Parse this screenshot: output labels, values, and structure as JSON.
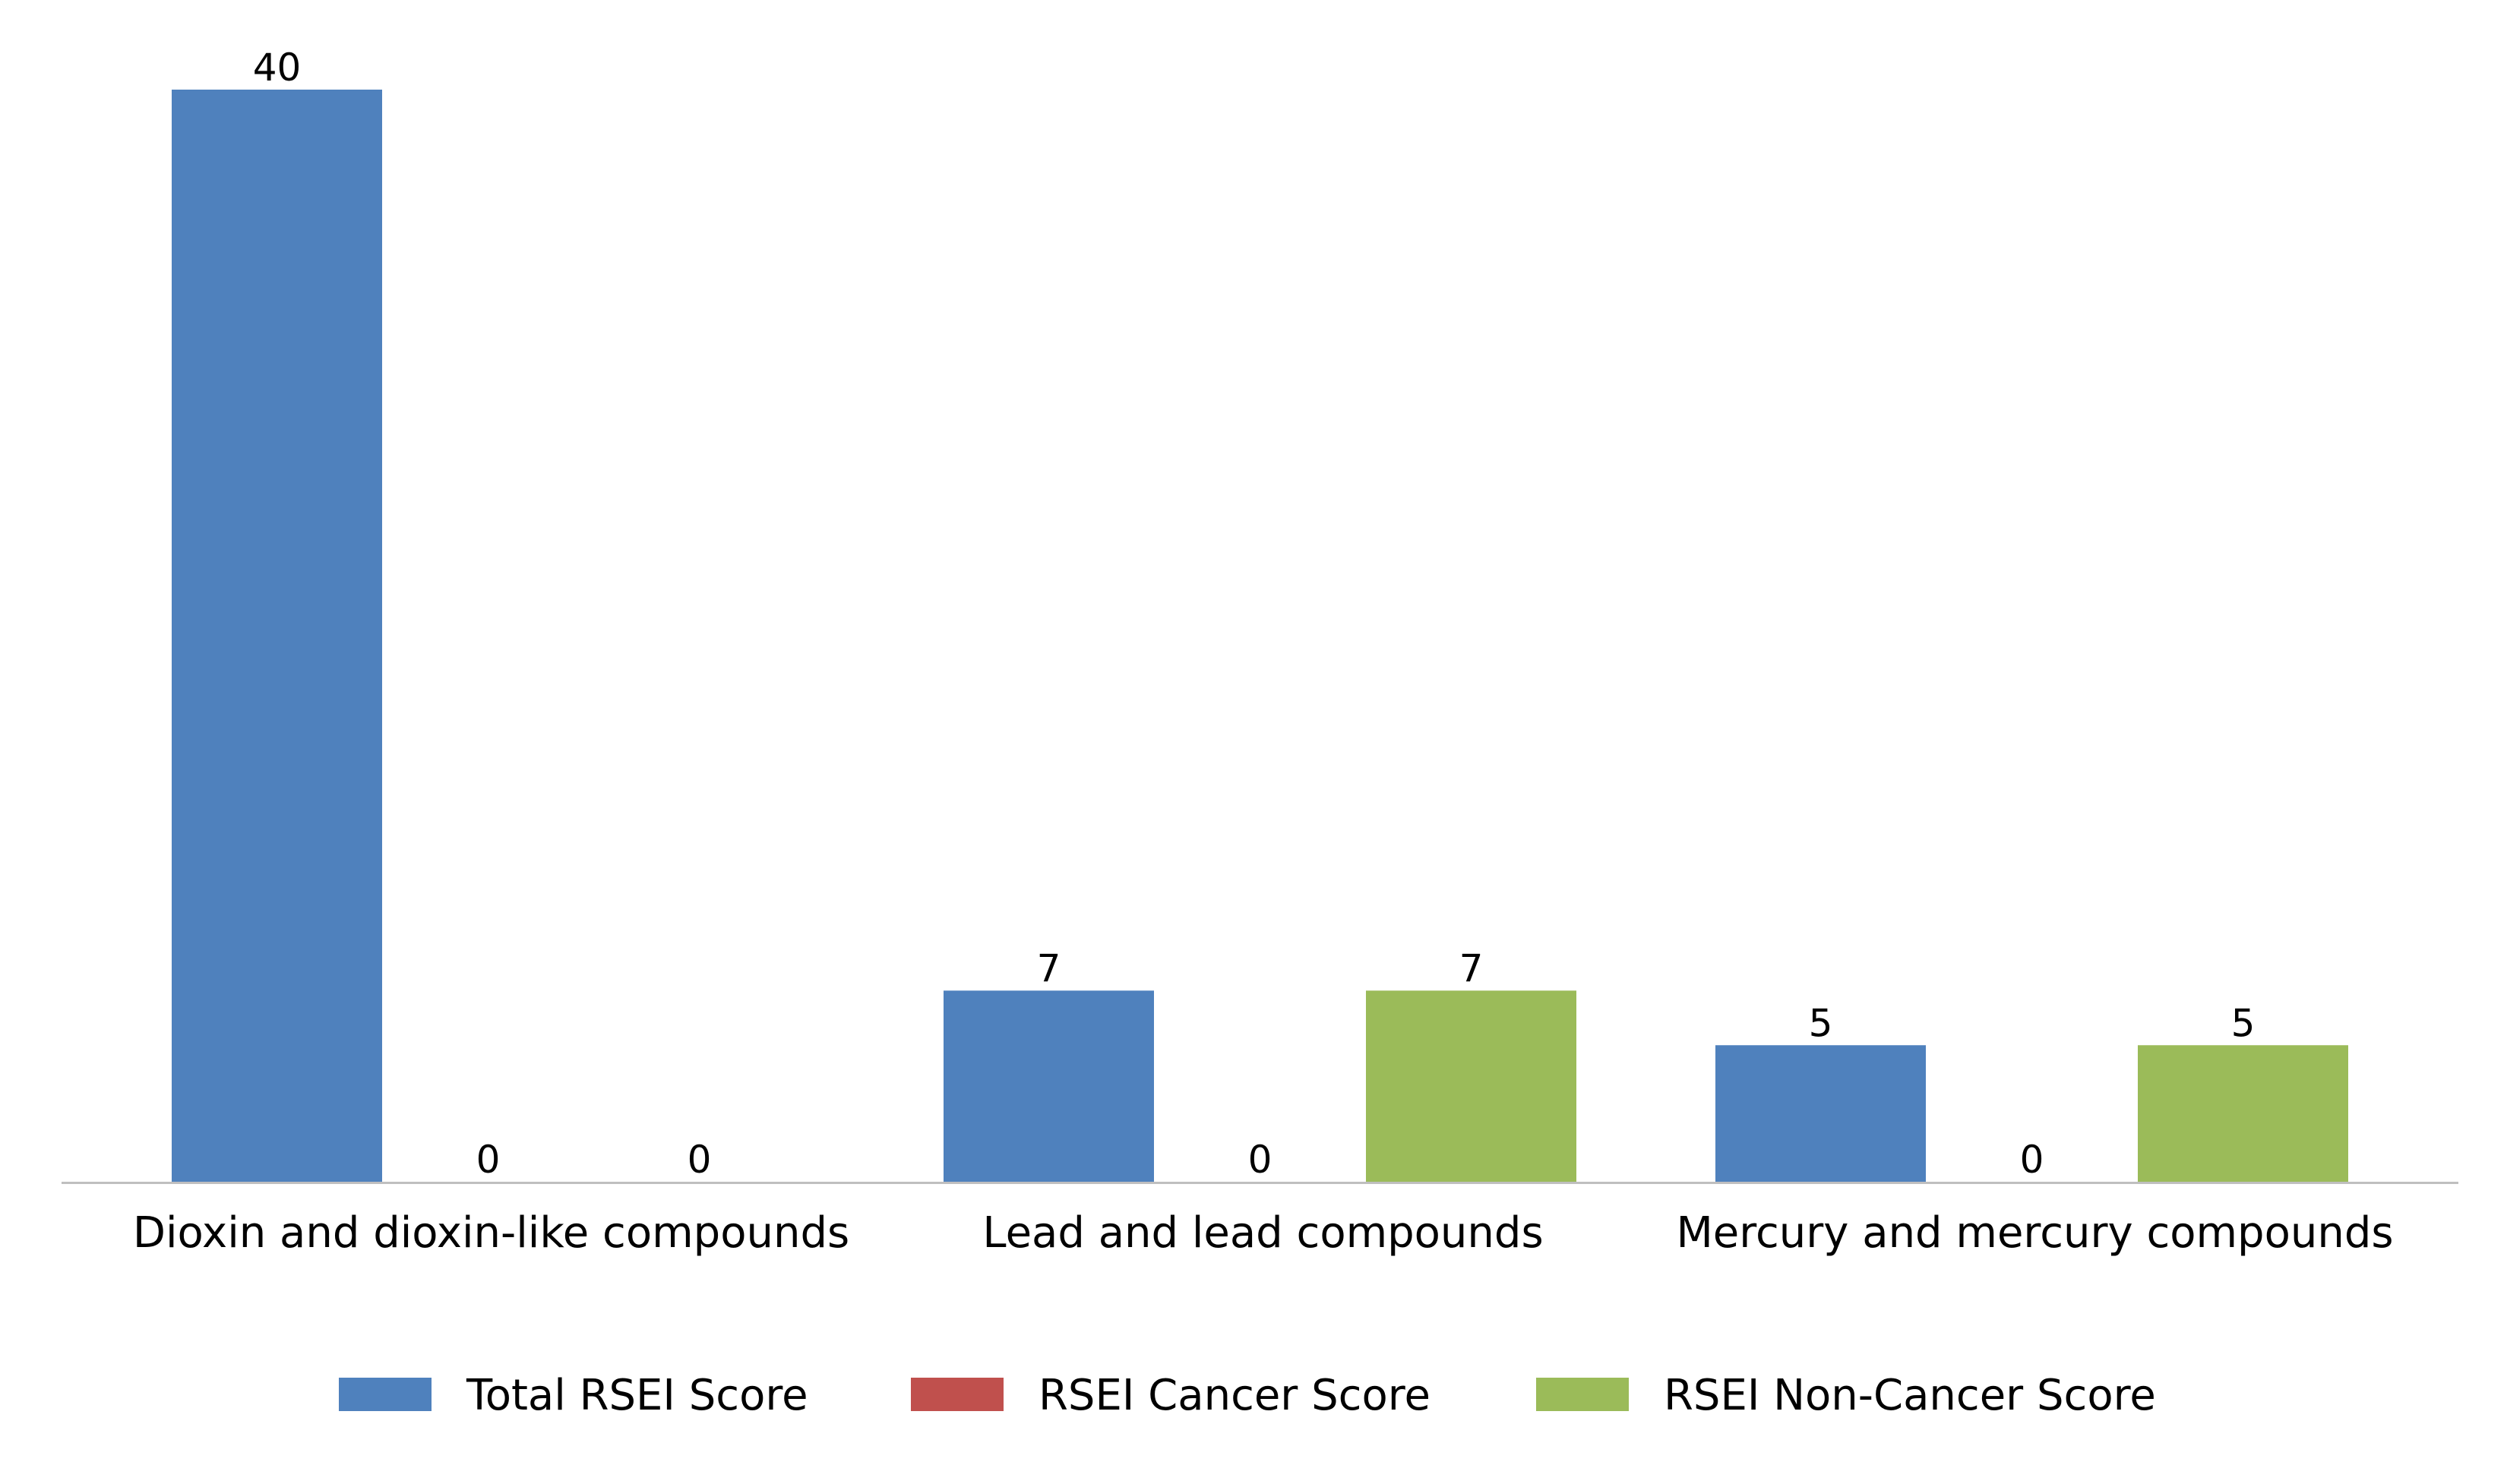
{
  "chart_data": {
    "type": "bar",
    "title": "",
    "xlabel": "",
    "ylabel": "",
    "categories": [
      "Dioxin and dioxin-like compounds",
      "Lead and lead compounds",
      "Mercury and mercury compounds"
    ],
    "series": [
      {
        "name": "Total RSEI Score",
        "values": [
          40,
          7,
          5
        ],
        "color": "#4f81bd"
      },
      {
        "name": "RSEI Cancer Score",
        "values": [
          0,
          0,
          0
        ],
        "color": "#c0504d"
      },
      {
        "name": "RSEI Non-Cancer Score",
        "values": [
          0,
          7,
          5
        ],
        "color": "#9bbb59"
      }
    ],
    "data_labels": [
      [
        "40",
        "7",
        "5"
      ],
      [
        "0",
        "0",
        "0"
      ],
      [
        "0",
        "7",
        "5"
      ]
    ],
    "ylim": [
      0,
      40
    ],
    "grid": false,
    "legend_position": "bottom",
    "axis_color": "#bfbfbf"
  }
}
